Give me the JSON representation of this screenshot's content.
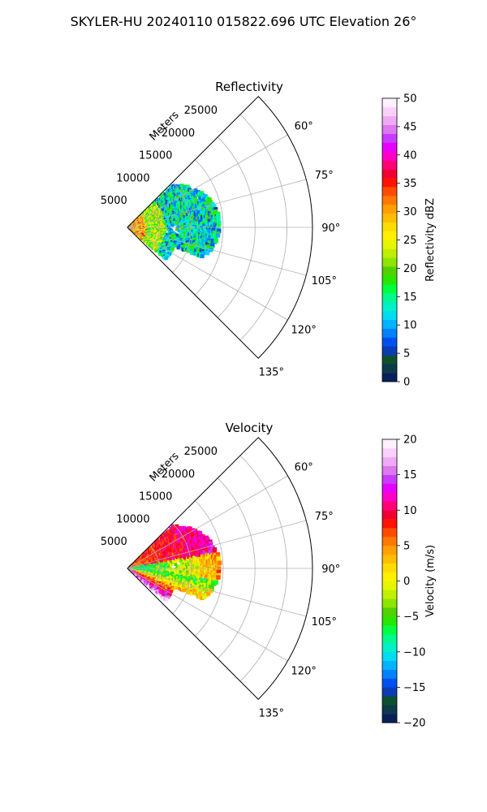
{
  "figure_title": "SKYLER-HU  20240110  015822.696 UTC Elevation 26°",
  "chart_data": [
    {
      "type": "heatmap",
      "title": "Reflectivity",
      "projection": "polar-sector",
      "theta_range_deg": [
        45,
        135
      ],
      "theta_ticks": [
        "60°",
        "75°",
        "90°",
        "105°",
        "120°",
        "135°"
      ],
      "theta_tick_values": [
        60,
        75,
        90,
        105,
        120,
        135
      ],
      "r_range": [
        0,
        29000
      ],
      "r_label": "Meters",
      "r_ticks": [
        "5000",
        "10000",
        "15000",
        "20000",
        "25000"
      ],
      "r_tick_values": [
        5000,
        10000,
        15000,
        20000,
        25000
      ],
      "grid": true,
      "data_extent_m": 14500,
      "colorbar": {
        "label": "Reflectivity dBZ",
        "min": 0,
        "max": 50,
        "ticks": [
          "0",
          "5",
          "10",
          "15",
          "20",
          "25",
          "30",
          "35",
          "40",
          "45",
          "50"
        ],
        "tick_values": [
          0,
          5,
          10,
          15,
          20,
          25,
          30,
          35,
          40,
          45,
          50
        ],
        "colors": [
          "#08205a",
          "#0c3a4a",
          "#0c5030",
          "#0a3cb4",
          "#0050f0",
          "#0082fa",
          "#00b4ff",
          "#00dcf0",
          "#00f0c8",
          "#00fa8c",
          "#00ff3c",
          "#28e600",
          "#50d200",
          "#8ce600",
          "#bef000",
          "#e6f500",
          "#fff000",
          "#ffdc00",
          "#ffbe00",
          "#ffa000",
          "#ff7800",
          "#ff4b00",
          "#ff1400",
          "#f00032",
          "#ff0078",
          "#ff00c8",
          "#e600ff",
          "#c83cff",
          "#dc78f0",
          "#f0aaf5",
          "#f8d2fa",
          "#fdf0ff"
        ]
      }
    },
    {
      "type": "heatmap",
      "title": "Velocity",
      "projection": "polar-sector",
      "theta_range_deg": [
        45,
        135
      ],
      "theta_ticks": [
        "60°",
        "75°",
        "90°",
        "105°",
        "120°",
        "135°"
      ],
      "theta_tick_values": [
        60,
        75,
        90,
        105,
        120,
        135
      ],
      "r_range": [
        0,
        29000
      ],
      "r_label": "Meters",
      "r_ticks": [
        "5000",
        "10000",
        "15000",
        "20000",
        "25000"
      ],
      "r_tick_values": [
        5000,
        10000,
        15000,
        20000,
        25000
      ],
      "grid": true,
      "data_extent_m": 14500,
      "colorbar": {
        "label": "Velocity (m/s)",
        "min": -20,
        "max": 20,
        "ticks": [
          "−20",
          "−15",
          "−10",
          "−5",
          "0",
          "5",
          "10",
          "15",
          "20"
        ],
        "tick_values": [
          -20,
          -15,
          -10,
          -5,
          0,
          5,
          10,
          15,
          20
        ],
        "colors": [
          "#08205a",
          "#0c3a4a",
          "#0c5030",
          "#0a3cb4",
          "#0050f0",
          "#0082fa",
          "#00b4ff",
          "#00dcf0",
          "#00f0c8",
          "#00fa8c",
          "#00ff3c",
          "#28e600",
          "#50d200",
          "#8ce600",
          "#bef000",
          "#e6f500",
          "#fff000",
          "#ffdc00",
          "#ffbe00",
          "#ffa000",
          "#ff7800",
          "#ff4b00",
          "#ff1400",
          "#f00032",
          "#ff0078",
          "#ff00c8",
          "#e600ff",
          "#c83cff",
          "#dc78f0",
          "#f0aaf5",
          "#f8d2fa",
          "#fdf0ff"
        ]
      }
    }
  ]
}
